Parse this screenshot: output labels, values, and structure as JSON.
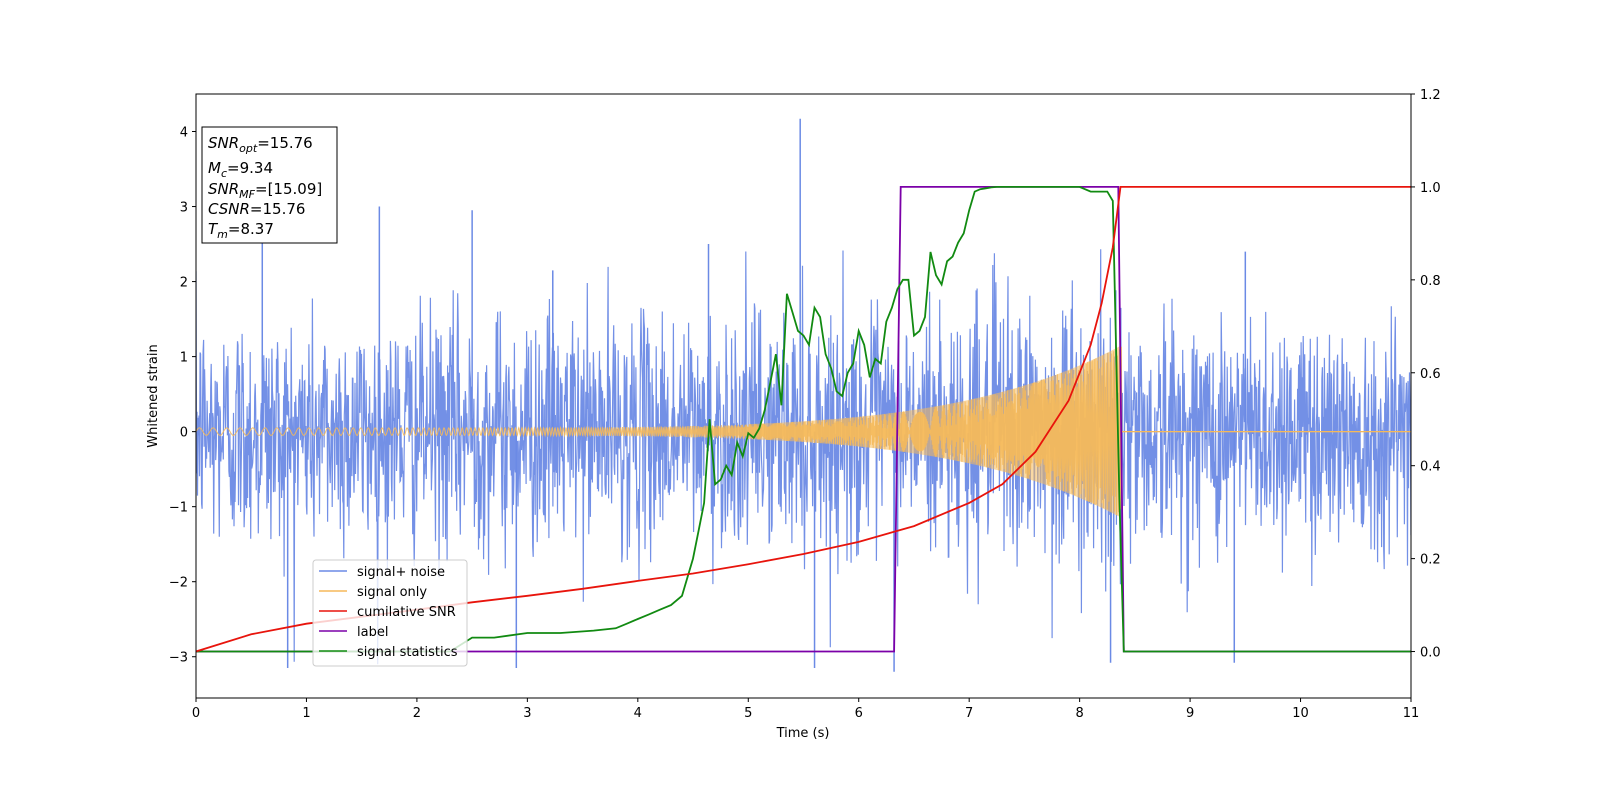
{
  "chart_data": {
    "type": "line",
    "xlabel": "Time (s)",
    "ylabel": "Whitened strain",
    "xlim": [
      0,
      11
    ],
    "ylim": [
      -3.55,
      4.5
    ],
    "y2lim": [
      -0.1,
      1.2
    ],
    "x_ticks": [
      "0",
      "1",
      "2",
      "3",
      "4",
      "5",
      "6",
      "7",
      "8",
      "9",
      "10",
      "11"
    ],
    "y_ticks": [
      "−3",
      "−2",
      "−1",
      "0",
      "1",
      "2",
      "3",
      "4"
    ],
    "y2_ticks": [
      "0.0",
      "0.2",
      "0.4",
      "0.6",
      "0.8",
      "1.0",
      "1.2"
    ],
    "legend_position": "lower-left",
    "grid": false,
    "stats_box": {
      "snr_opt": {
        "base": "SNR",
        "sub": "opt",
        "value": "=15.76"
      },
      "mc": {
        "base": "M",
        "sub": "c",
        "value": "=9.34"
      },
      "snr_mf": {
        "base": "SNR",
        "sub": "MF",
        "value": "=[15.09]"
      },
      "csnr": {
        "base": "CSNR",
        "value": "=15.76"
      },
      "tm": {
        "base": "T",
        "sub": "m",
        "value": "=8.37"
      }
    },
    "series": [
      {
        "name": "signal+ noise",
        "color": "#6b8ae5",
        "axis": "left",
        "typical_band": [
          -1.4,
          1.4
        ],
        "peaks": [
          {
            "x": 5.47,
            "y": 4.17
          },
          {
            "x": 1.66,
            "y": 3.0
          },
          {
            "x": 2.5,
            "y": 2.95
          },
          {
            "x": 0.6,
            "y": 2.55
          },
          {
            "x": 0.83,
            "y": -3.15
          },
          {
            "x": 2.9,
            "y": -3.15
          },
          {
            "x": 5.6,
            "y": -3.15
          },
          {
            "x": 6.32,
            "y": -3.2
          },
          {
            "x": 8.28,
            "y": -3.08
          },
          {
            "x": 9.4,
            "y": -3.08
          },
          {
            "x": 3.23,
            "y": 2.15
          },
          {
            "x": 4.64,
            "y": 2.5
          },
          {
            "x": 9.5,
            "y": 2.4
          }
        ]
      },
      {
        "name": "signal only",
        "color": "#f5b95a",
        "axis": "left",
        "start_amplitude": 0.05,
        "end_amplitude": 1.15,
        "merger_time": 8.38
      },
      {
        "name": "cumilative SNR",
        "color": "#e8140c",
        "axis": "right",
        "x": [
          0,
          0.5,
          1,
          1.5,
          2,
          2.5,
          3,
          3.5,
          4,
          4.5,
          5,
          5.5,
          6,
          6.5,
          7,
          7.3,
          7.6,
          7.9,
          8.1,
          8.2,
          8.3,
          8.37,
          9,
          10,
          11
        ],
        "y": [
          0.0,
          0.037,
          0.06,
          0.075,
          0.09,
          0.106,
          0.12,
          0.135,
          0.152,
          0.168,
          0.188,
          0.21,
          0.236,
          0.27,
          0.32,
          0.36,
          0.43,
          0.54,
          0.66,
          0.75,
          0.87,
          1.0,
          1.0,
          1.0,
          1.0
        ]
      },
      {
        "name": "label",
        "color": "#7b00a8",
        "axis": "right",
        "x": [
          0,
          6.32,
          6.38,
          8.35,
          8.4,
          11
        ],
        "y": [
          0.0,
          0.0,
          1.0,
          1.0,
          0.0,
          0.0
        ]
      },
      {
        "name": "signal statistics",
        "color": "#118a11",
        "axis": "right",
        "x": [
          0,
          2.3,
          2.5,
          2.7,
          3.0,
          3.3,
          3.6,
          3.8,
          3.9,
          4.0,
          4.1,
          4.2,
          4.3,
          4.4,
          4.5,
          4.55,
          4.6,
          4.65,
          4.7,
          4.75,
          4.8,
          4.85,
          4.9,
          4.95,
          5.0,
          5.05,
          5.1,
          5.15,
          5.2,
          5.25,
          5.3,
          5.35,
          5.4,
          5.45,
          5.5,
          5.55,
          5.6,
          5.65,
          5.7,
          5.75,
          5.8,
          5.85,
          5.9,
          5.95,
          6.0,
          6.05,
          6.1,
          6.15,
          6.2,
          6.25,
          6.3,
          6.35,
          6.4,
          6.45,
          6.5,
          6.55,
          6.6,
          6.65,
          6.7,
          6.75,
          6.8,
          6.85,
          6.9,
          6.95,
          7.0,
          7.05,
          7.1,
          7.15,
          7.2,
          7.25,
          7.3,
          7.35,
          7.4,
          7.45,
          7.5,
          7.6,
          7.7,
          7.8,
          7.9,
          8.0,
          8.1,
          8.15,
          8.2,
          8.25,
          8.3,
          8.33,
          8.36,
          8.4,
          8.45,
          8.5,
          9,
          10,
          11
        ],
        "y": [
          0.0,
          0.0,
          0.03,
          0.03,
          0.04,
          0.04,
          0.045,
          0.05,
          0.06,
          0.07,
          0.08,
          0.09,
          0.1,
          0.12,
          0.2,
          0.26,
          0.32,
          0.5,
          0.36,
          0.37,
          0.4,
          0.38,
          0.45,
          0.42,
          0.47,
          0.46,
          0.48,
          0.52,
          0.58,
          0.64,
          0.53,
          0.77,
          0.73,
          0.69,
          0.68,
          0.66,
          0.74,
          0.72,
          0.64,
          0.61,
          0.56,
          0.55,
          0.6,
          0.62,
          0.69,
          0.66,
          0.59,
          0.63,
          0.62,
          0.71,
          0.74,
          0.78,
          0.8,
          0.8,
          0.68,
          0.69,
          0.72,
          0.86,
          0.81,
          0.79,
          0.84,
          0.85,
          0.88,
          0.9,
          0.95,
          0.99,
          0.995,
          0.997,
          0.999,
          1.0,
          1.0,
          1.0,
          1.0,
          1.0,
          1.0,
          1.0,
          1.0,
          1.0,
          1.0,
          1.0,
          0.99,
          0.99,
          0.99,
          0.99,
          0.97,
          0.65,
          0.33,
          0.0,
          0.0,
          0.0,
          0.0,
          0.0,
          0.0
        ]
      }
    ]
  }
}
